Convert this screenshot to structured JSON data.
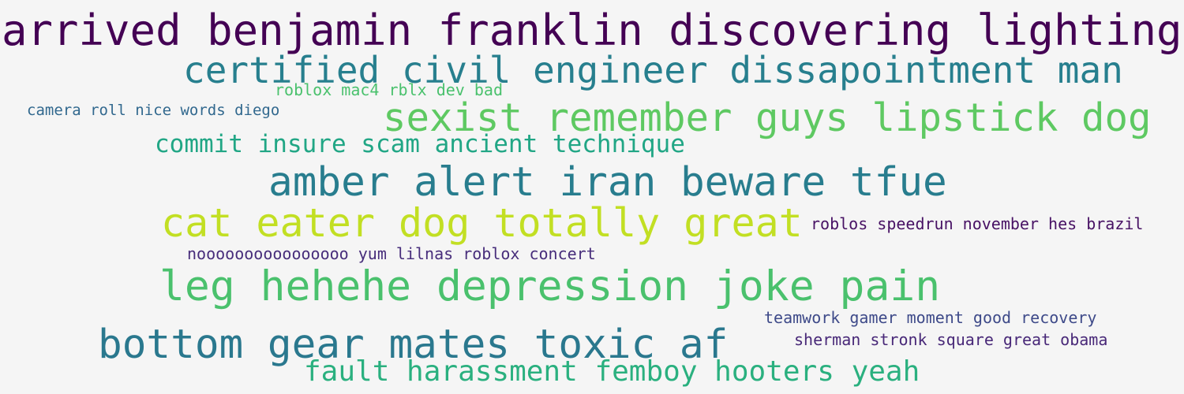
{
  "words": [
    {
      "text": "arrived benjamin franklin discovering lighting",
      "color": "#440154"
    },
    {
      "text": "certified civil engineer dissapointment man",
      "color": "#277f8e"
    },
    {
      "text": "roblox mac4  rblx dev bad",
      "color": "#4ac16d"
    },
    {
      "text": "camera roll nice words diego",
      "color": "#31688e"
    },
    {
      "text": "sexist remember guys lipstick dog",
      "color": "#5ec962"
    },
    {
      "text": "commit insure scam ancient technique",
      "color": "#21a685"
    },
    {
      "text": "amber alert iran beware tfue",
      "color": "#287d8e"
    },
    {
      "text": "cat eater dog totally great",
      "color": "#c2df23"
    },
    {
      "text": "roblos speedrun november hes brazil",
      "color": "#471164"
    },
    {
      "text": "noooooooooooooooo yum lilnas roblox concert",
      "color": "#472d7b"
    },
    {
      "text": "leg hehehe depression joke pain",
      "color": "#4ac16d"
    },
    {
      "text": "teamwork gamer moment good recovery",
      "color": "#3e4a89"
    },
    {
      "text": "sherman stronk square great obama",
      "color": "#482878"
    },
    {
      "text": "bottom gear mates toxic af",
      "color": "#2a788e"
    },
    {
      "text": "fault harassment femboy hooters yeah",
      "color": "#2ab07f"
    }
  ]
}
